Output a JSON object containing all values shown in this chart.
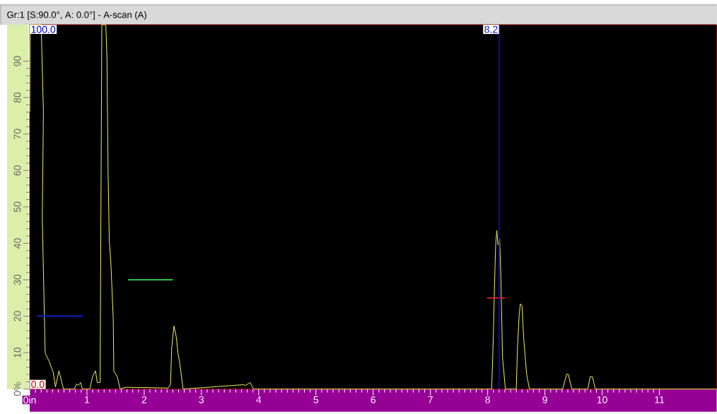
{
  "chart_data": {
    "type": "line",
    "title": "Gr:1 [S:90.0°, A: 0.0°] - A-scan (A)",
    "xlim": [
      0,
      12
    ],
    "ylim": [
      0,
      100
    ],
    "xticks": [
      {
        "value": 0,
        "label": "0in"
      },
      1,
      2,
      3,
      4,
      5,
      6,
      7,
      8,
      9,
      10,
      11
    ],
    "yticks": [
      {
        "value": 0,
        "label": "0%"
      },
      10,
      20,
      30,
      40,
      50,
      60,
      70,
      80,
      90
    ],
    "annotations": [
      "100.0",
      "0.0"
    ],
    "ref_lines": [
      {
        "axis": "x",
        "value": 8.2,
        "label": "8.2",
        "color": "#1010c0"
      }
    ],
    "series": [
      {
        "color": "#f0f060",
        "x": [
          0,
          0.01,
          0.2,
          0.24,
          0.22,
          0.27,
          0.28,
          0.34,
          0.41,
          0.45,
          0.51,
          0.59,
          0.78,
          0.82,
          0.85,
          0.89,
          0.92,
          1.05,
          1.1,
          1.15,
          1.18,
          1.23,
          1.26,
          1.33,
          1.35,
          1.37,
          1.39,
          1.42,
          1.46,
          1.47,
          1.48,
          1.53,
          1.58,
          1.68,
          2.42,
          2.46,
          2.48,
          2.52,
          2.56,
          2.59,
          2.62,
          2.64,
          2.68,
          3.73,
          3.77,
          3.85,
          3.91,
          8.07,
          8.1,
          8.12,
          8.14,
          8.16,
          8.18,
          8.21,
          8.23,
          8.26,
          8.31,
          8.5,
          8.52,
          8.55,
          8.57,
          8.6,
          8.63,
          8.68,
          8.73,
          9.31,
          9.38,
          9.41,
          9.47,
          9.75,
          9.79,
          9.83,
          9.88,
          12
        ],
        "values": [
          76,
          100,
          100,
          76,
          47,
          10,
          9.6,
          7.6,
          4.7,
          0.6,
          5,
          0,
          0,
          1.4,
          1,
          1.8,
          0,
          0,
          3.5,
          5,
          1.8,
          1.8,
          100,
          100,
          91,
          59,
          41,
          34,
          19,
          4.7,
          4.7,
          3.4,
          0,
          0.5,
          0.3,
          1.3,
          11.2,
          17.3,
          14.4,
          9.9,
          7.3,
          4.8,
          0,
          1.2,
          1,
          1.8,
          0,
          0,
          15,
          29,
          39.6,
          43.5,
          39.6,
          41.2,
          31,
          8.6,
          0,
          0,
          11.2,
          20.2,
          23.4,
          22.8,
          13.8,
          4.1,
          0,
          0,
          4.1,
          4,
          0,
          0,
          3.4,
          3.4,
          0,
          0
        ]
      },
      {
        "color": "#1020c0",
        "x": [
          0.12,
          0.93
        ],
        "values": [
          20,
          20
        ]
      },
      {
        "color": "#30c040",
        "x": [
          1.72,
          2.5
        ],
        "values": [
          30,
          30
        ]
      },
      {
        "color": "#d02020",
        "x": [
          7.99,
          8.3
        ],
        "values": [
          25,
          25
        ]
      }
    ]
  }
}
